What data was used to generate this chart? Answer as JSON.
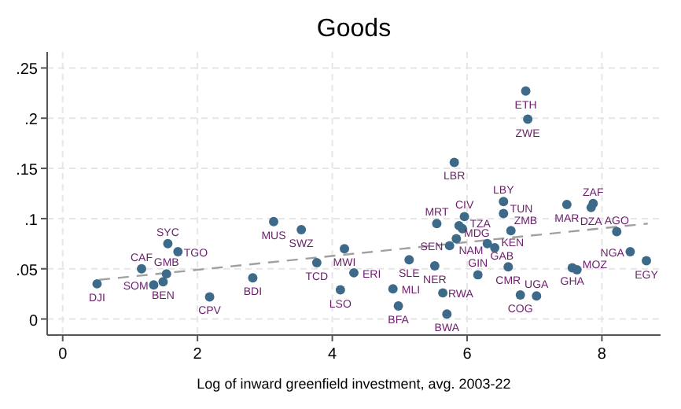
{
  "chart_data": {
    "type": "scatter",
    "title": "Goods",
    "xlabel": "Log of inward greenfield investment, avg. 2003-22",
    "xlim": [
      -0.23,
      8.87
    ],
    "ylim": [
      -0.016,
      0.266
    ],
    "xticks": [
      0,
      2,
      4,
      6,
      8
    ],
    "yticks": [
      {
        "value": 0,
        "label": "0"
      },
      {
        "value": 0.05,
        "label": ".05"
      },
      {
        "value": 0.1,
        "label": ".1"
      },
      {
        "value": 0.15,
        "label": ".15"
      },
      {
        "value": 0.2,
        "label": ".2"
      },
      {
        "value": 0.25,
        "label": ".25"
      }
    ],
    "grid": true,
    "marker": "circle",
    "series": [
      {
        "color": "#3e6a8a",
        "x": [
          0.51,
          1.17,
          1.56,
          1.71,
          1.54,
          1.49,
          1.35,
          2.18,
          2.82,
          3.13,
          3.54,
          3.77,
          4.18,
          4.32,
          4.12,
          5.14,
          4.9,
          4.98,
          5.52,
          5.64,
          5.7,
          5.74,
          5.55,
          5.81,
          5.88,
          5.96,
          5.93,
          5.84,
          6.16,
          6.3,
          6.41,
          6.61,
          6.65,
          6.54,
          6.54,
          6.87,
          6.9,
          6.79,
          7.03,
          7.48,
          7.87,
          7.84,
          8.22,
          8.42,
          8.66,
          7.56,
          7.63
        ],
        "values": [
          0.035,
          0.05,
          0.075,
          0.067,
          0.045,
          0.037,
          0.034,
          0.022,
          0.041,
          0.097,
          0.089,
          0.056,
          0.07,
          0.046,
          0.029,
          0.059,
          0.03,
          0.013,
          0.053,
          0.026,
          0.005,
          0.073,
          0.095,
          0.156,
          0.093,
          0.102,
          0.09,
          0.08,
          0.044,
          0.075,
          0.071,
          0.052,
          0.088,
          0.117,
          0.105,
          0.227,
          0.199,
          0.024,
          0.023,
          0.114,
          0.115,
          0.111,
          0.087,
          0.067,
          0.058,
          0.051,
          0.049
        ],
        "value_labels": [
          "DJI",
          "CAF",
          "SYC",
          "TGO",
          "GMB",
          "BEN",
          "SOM",
          "CPV",
          "BDI",
          "MUS",
          "SWZ",
          "TCD",
          "MWI",
          "ERI",
          "LSO",
          "SLE",
          "MLI",
          "BFA",
          "NER",
          "RWA",
          "BWA",
          "SEN",
          "MRT",
          "LBR",
          "MDG",
          "CIV",
          "TZA",
          "NAM",
          "GIN",
          "GAB",
          "KEN",
          "CMR",
          "ZMB",
          "LBY",
          "TUN",
          "ETH",
          "ZWE",
          "COG",
          "UGA",
          "MAR",
          "ZAF",
          "DZA",
          "AGO",
          "NGA",
          "EGY",
          "GHA",
          "MOZ"
        ]
      },
      {
        "type": "line",
        "color": "#a0a0a0",
        "line_style": "dashed",
        "marker": "none",
        "x": [
          0.54,
          8.68
        ],
        "values": [
          0.039,
          0.095
        ]
      }
    ]
  }
}
